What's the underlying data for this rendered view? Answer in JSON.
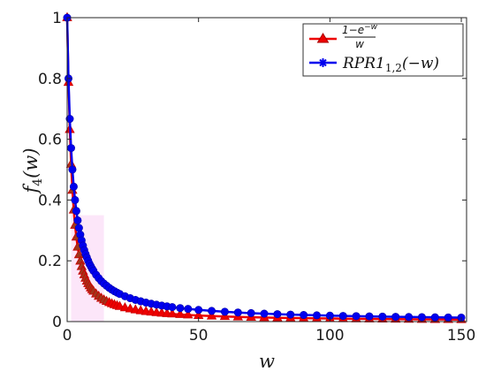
{
  "chart_data": {
    "type": "line",
    "xlabel": "w",
    "ylabel": "f_4(w)",
    "xlim": [
      0,
      152
    ],
    "ylim": [
      0,
      1
    ],
    "x_ticks": [
      {
        "value": 0,
        "label": "0"
      },
      {
        "value": 50,
        "label": "50"
      },
      {
        "value": 100,
        "label": "100"
      },
      {
        "value": 150,
        "label": "150"
      }
    ],
    "y_ticks": [
      {
        "value": 0,
        "label": "0"
      },
      {
        "value": 0.2,
        "label": "0.2"
      },
      {
        "value": 0.4,
        "label": "0.4"
      },
      {
        "value": 0.6,
        "label": "0.6"
      },
      {
        "value": 0.8,
        "label": "0.8"
      },
      {
        "value": 1,
        "label": "1"
      }
    ],
    "grid": false,
    "legend_position": "top-right",
    "series": [
      {
        "name": "(1-e^{-w})/w",
        "color": "#ee0000",
        "marker": "triangle",
        "x": [
          0.0001,
          0.5,
          1,
          1.5,
          2,
          2.5,
          3,
          3.5,
          4,
          4.5,
          5,
          5.5,
          6,
          6.5,
          7,
          7.5,
          8,
          8.5,
          9,
          9.5,
          10,
          11,
          12,
          13,
          14,
          15,
          16,
          17,
          18,
          19,
          20,
          22,
          24,
          26,
          28,
          30,
          32,
          34,
          36,
          38,
          40,
          43,
          46,
          50,
          55,
          60,
          65,
          70,
          75,
          80,
          85,
          90,
          95,
          100,
          105,
          110,
          115,
          120,
          125,
          130,
          135,
          140,
          145,
          150
        ],
        "y": [
          1.0,
          0.787,
          0.632,
          0.518,
          0.432,
          0.367,
          0.317,
          0.278,
          0.245,
          0.22,
          0.199,
          0.181,
          0.166,
          0.154,
          0.143,
          0.133,
          0.125,
          0.118,
          0.111,
          0.105,
          0.1,
          0.0909,
          0.0833,
          0.0769,
          0.0714,
          0.0667,
          0.0625,
          0.0588,
          0.0556,
          0.0526,
          0.05,
          0.0455,
          0.0417,
          0.0385,
          0.0357,
          0.0333,
          0.0313,
          0.0294,
          0.0278,
          0.0263,
          0.025,
          0.0233,
          0.0217,
          0.02,
          0.0182,
          0.0167,
          0.0154,
          0.0143,
          0.0133,
          0.0125,
          0.0118,
          0.0111,
          0.0105,
          0.01,
          0.0095,
          0.0091,
          0.0087,
          0.0083,
          0.008,
          0.0077,
          0.0074,
          0.0071,
          0.0069,
          0.0067
        ]
      },
      {
        "name": "RPR1_{1,2}(-w)",
        "color": "#0000ee",
        "marker": "asterisk",
        "x": [
          0.0001,
          0.5,
          1,
          1.5,
          2,
          2.5,
          3,
          3.5,
          4,
          4.5,
          5,
          5.5,
          6,
          6.5,
          7,
          7.5,
          8,
          8.5,
          9,
          9.5,
          10,
          11,
          12,
          13,
          14,
          15,
          16,
          17,
          18,
          19,
          20,
          22,
          24,
          26,
          28,
          30,
          32,
          34,
          36,
          38,
          40,
          43,
          46,
          50,
          55,
          60,
          65,
          70,
          75,
          80,
          85,
          90,
          95,
          100,
          105,
          110,
          115,
          120,
          125,
          130,
          135,
          140,
          145,
          150
        ],
        "y": [
          1.0,
          0.8,
          0.667,
          0.571,
          0.5,
          0.444,
          0.4,
          0.364,
          0.333,
          0.308,
          0.286,
          0.267,
          0.25,
          0.235,
          0.222,
          0.211,
          0.2,
          0.19,
          0.182,
          0.174,
          0.167,
          0.154,
          0.143,
          0.133,
          0.125,
          0.118,
          0.111,
          0.105,
          0.1,
          0.0952,
          0.0909,
          0.0833,
          0.0769,
          0.0714,
          0.0667,
          0.0625,
          0.0588,
          0.0556,
          0.0526,
          0.05,
          0.0476,
          0.0444,
          0.0417,
          0.0385,
          0.0351,
          0.0323,
          0.0299,
          0.0278,
          0.026,
          0.0244,
          0.023,
          0.0217,
          0.0206,
          0.0196,
          0.0187,
          0.0179,
          0.0171,
          0.0164,
          0.0157,
          0.0152,
          0.0146,
          0.0141,
          0.0136,
          0.0132
        ]
      }
    ]
  }
}
